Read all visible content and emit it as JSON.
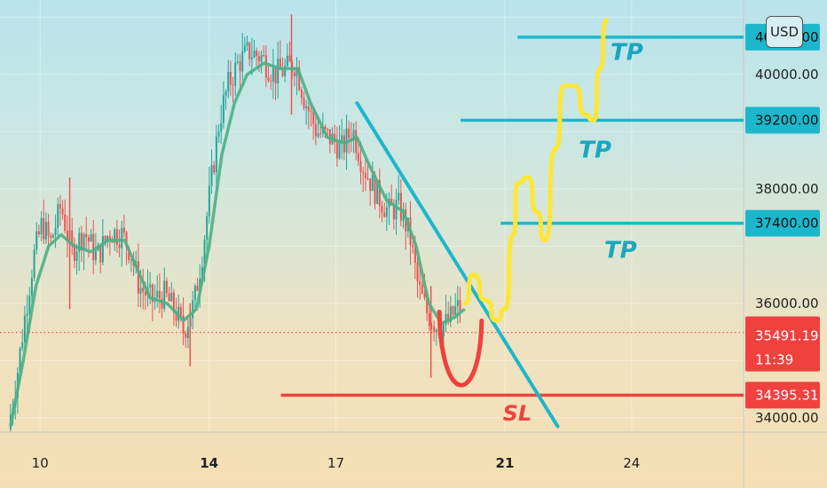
{
  "chart_data": {
    "type": "candlestick",
    "ylim": [
      33750,
      41300
    ],
    "y_ticks": [
      "34000.00",
      "36000.00",
      "38000.00",
      "40000.00"
    ],
    "x_ticks": [
      {
        "label": "10",
        "day": 10,
        "bold": false
      },
      {
        "label": "14",
        "day": 14,
        "bold": true
      },
      {
        "label": "17",
        "day": 17,
        "bold": false
      },
      {
        "label": "21",
        "day": 21,
        "bold": true
      },
      {
        "label": "24",
        "day": 24,
        "bold": false
      }
    ],
    "x_range": [
      9.05,
      26.65
    ],
    "currency": "USD",
    "price_path": [
      [
        9.3,
        33800
      ],
      [
        9.5,
        34700
      ],
      [
        9.7,
        35800
      ],
      [
        9.9,
        36800
      ],
      [
        10.1,
        37400
      ],
      [
        10.3,
        37050
      ],
      [
        10.55,
        37700
      ],
      [
        10.8,
        36900
      ],
      [
        11.1,
        37250
      ],
      [
        11.4,
        36800
      ],
      [
        11.7,
        37250
      ],
      [
        12.0,
        37200
      ],
      [
        12.2,
        36900
      ],
      [
        12.4,
        36300
      ],
      [
        12.7,
        36050
      ],
      [
        13.0,
        36150
      ],
      [
        13.3,
        35800
      ],
      [
        13.45,
        35500
      ],
      [
        13.7,
        36000
      ],
      [
        13.9,
        36900
      ],
      [
        14.1,
        38100
      ],
      [
        14.3,
        39200
      ],
      [
        14.5,
        39800
      ],
      [
        14.75,
        40200
      ],
      [
        15.0,
        40400
      ],
      [
        15.3,
        40300
      ],
      [
        15.6,
        40000
      ],
      [
        15.9,
        40100
      ],
      [
        16.1,
        40200
      ],
      [
        16.3,
        39600
      ],
      [
        16.6,
        39000
      ],
      [
        16.9,
        38900
      ],
      [
        17.2,
        38700
      ],
      [
        17.45,
        39050
      ],
      [
        17.7,
        38400
      ],
      [
        18.0,
        37950
      ],
      [
        18.3,
        37600
      ],
      [
        18.55,
        37700
      ],
      [
        18.8,
        37200
      ],
      [
        19.0,
        36300
      ],
      [
        19.2,
        35850
      ],
      [
        19.45,
        35600
      ],
      [
        19.7,
        35650
      ],
      [
        19.9,
        35900
      ],
      [
        20.05,
        35950
      ]
    ],
    "candle_wicks": [
      [
        10.7,
        38200,
        35900
      ],
      [
        15.95,
        41050,
        39300
      ],
      [
        19.25,
        36300,
        34700
      ],
      [
        13.55,
        36000,
        34900
      ]
    ],
    "ema_path": [
      [
        9.3,
        33850
      ],
      [
        9.6,
        35000
      ],
      [
        9.9,
        36300
      ],
      [
        10.2,
        37000
      ],
      [
        10.5,
        37200
      ],
      [
        10.8,
        37000
      ],
      [
        11.2,
        36900
      ],
      [
        11.6,
        37100
      ],
      [
        12.0,
        37100
      ],
      [
        12.3,
        36600
      ],
      [
        12.6,
        36100
      ],
      [
        13.0,
        36000
      ],
      [
        13.4,
        35700
      ],
      [
        13.7,
        35900
      ],
      [
        14.0,
        37000
      ],
      [
        14.3,
        38600
      ],
      [
        14.6,
        39500
      ],
      [
        14.9,
        40000
      ],
      [
        15.3,
        40200
      ],
      [
        15.7,
        40100
      ],
      [
        16.1,
        40100
      ],
      [
        16.4,
        39500
      ],
      [
        16.8,
        38900
      ],
      [
        17.2,
        38800
      ],
      [
        17.5,
        38900
      ],
      [
        17.8,
        38400
      ],
      [
        18.2,
        37800
      ],
      [
        18.6,
        37600
      ],
      [
        18.9,
        37000
      ],
      [
        19.2,
        36000
      ],
      [
        19.5,
        35650
      ],
      [
        19.8,
        35750
      ],
      [
        20.05,
        35900
      ]
    ],
    "projection_path": [
      [
        20.05,
        36000
      ],
      [
        20.25,
        36500
      ],
      [
        20.55,
        36050
      ],
      [
        20.8,
        35700
      ],
      [
        21.0,
        35900
      ],
      [
        21.2,
        37200
      ],
      [
        21.3,
        38100
      ],
      [
        21.55,
        38200
      ],
      [
        21.75,
        37600
      ],
      [
        21.95,
        37100
      ],
      [
        22.2,
        38700
      ],
      [
        22.4,
        39800
      ],
      [
        22.65,
        39800
      ],
      [
        22.9,
        39300
      ],
      [
        23.1,
        39200
      ],
      [
        23.25,
        40100
      ],
      [
        23.4,
        40950
      ]
    ],
    "trendline": [
      [
        17.5,
        39500
      ],
      [
        22.25,
        33850
      ]
    ],
    "levels": [
      {
        "name": "tp-level",
        "price": 40650,
        "label": "40650.00",
        "x_start": 21.3,
        "color": "#1cb7cc"
      },
      {
        "name": "tp-level",
        "price": 39200,
        "label": "39200.00",
        "x_start": 19.95,
        "color": "#1cb7cc"
      },
      {
        "name": "tp-level",
        "price": 37400,
        "label": "37400.00",
        "x_start": 20.9,
        "color": "#1cb7cc"
      },
      {
        "name": "sl-level",
        "price": 34395.31,
        "label": "34395.31",
        "x_start": 15.7,
        "color": "#f0413f"
      }
    ],
    "current_price": {
      "price": 35491.19,
      "label": "35491.19",
      "countdown": "11:39",
      "color": "#f0413f"
    },
    "annotations": [
      {
        "name": "tp-label",
        "text": "TP",
        "x": 23.5,
        "y": 40250,
        "color": "#1aa7c0"
      },
      {
        "name": "tp-label",
        "text": "TP",
        "x": 22.75,
        "y": 38550,
        "color": "#1aa7c0"
      },
      {
        "name": "tp-label",
        "text": "TP",
        "x": 23.35,
        "y": 36800,
        "color": "#1aa7c0"
      },
      {
        "name": "sl-label",
        "text": "SL",
        "x": 20.95,
        "y": 33950,
        "color": "#f0413f"
      }
    ],
    "cup_arc": {
      "x1": 19.45,
      "x2": 20.45,
      "top": 35850,
      "bottom": 34480,
      "color": "#f0413f"
    },
    "colors": {
      "up": "#26a69a",
      "down": "#ef5350",
      "ema": "#4caf85",
      "projection": "#ffe636",
      "trend": "#1cb7cc"
    }
  }
}
